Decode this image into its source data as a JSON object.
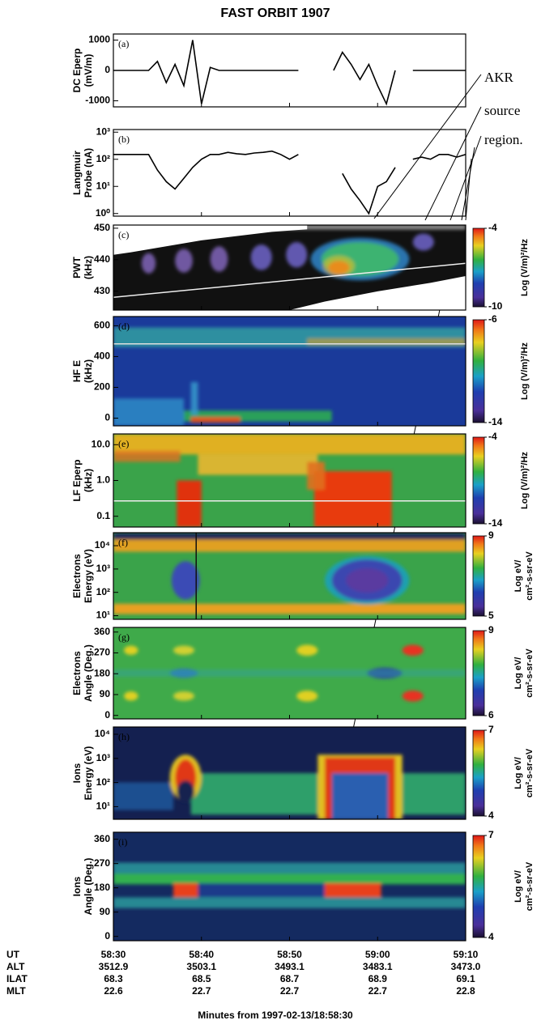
{
  "chart_data": {
    "type": "spectrogram",
    "title": "FAST ORBIT 1907",
    "x_label": "Minutes from 1997-02-13/18:58:30",
    "xlim": [
      0,
      40
    ],
    "xticks": [
      {
        "value": 0,
        "label": "58:30"
      },
      {
        "value": 10,
        "label": "58:40"
      },
      {
        "value": 20,
        "label": "58:50"
      },
      {
        "value": 30,
        "label": "59:00"
      },
      {
        "value": 40,
        "label": "59:10"
      }
    ],
    "row_labels": [
      "UT",
      "ALT",
      "ILAT",
      "MLT"
    ],
    "alt": [
      "3512.9",
      "3503.1",
      "3493.1",
      "3483.1",
      "3473.0"
    ],
    "ilat": [
      "68.3",
      "68.5",
      "68.7",
      "68.9",
      "69.1"
    ],
    "mlt": [
      "22.6",
      "22.7",
      "22.7",
      "22.7",
      "22.8"
    ],
    "annotation": [
      "AKR",
      "source",
      "region."
    ],
    "x": [
      0,
      1,
      2,
      3,
      4,
      5,
      6,
      7,
      8,
      9,
      10,
      11,
      12,
      13,
      14,
      15,
      16,
      17,
      18,
      19,
      20,
      21,
      22,
      23,
      24,
      25,
      26,
      27,
      28,
      29,
      30,
      31,
      32,
      33,
      34,
      35,
      36,
      37,
      38,
      39,
      40
    ],
    "panels": [
      {
        "type": "line",
        "letter": "(a)",
        "ylabel": [
          "DC Eperp",
          "(mV/m)"
        ],
        "color": "#000000",
        "ylim": [
          -1200,
          1200
        ],
        "yticks": [
          1000,
          0,
          -1000
        ],
        "values": [
          0,
          0,
          0,
          0,
          0,
          300,
          -400,
          200,
          -500,
          1000,
          -1100,
          100,
          0,
          0,
          0,
          0,
          0,
          0,
          0,
          0,
          0,
          0,
          null,
          null,
          null,
          0,
          600,
          200,
          -300,
          200,
          -500,
          -1100,
          0,
          null,
          0,
          0,
          0,
          0,
          0,
          0,
          0
        ]
      },
      {
        "type": "line",
        "letter": "(b)",
        "ylabel": [
          "Langmuir",
          "Probe (nA)"
        ],
        "color": "#000000",
        "log": true,
        "ylim": [
          0.8,
          1250
        ],
        "yticks": [
          {
            "value": 1000,
            "label": "10³"
          },
          {
            "value": 100,
            "label": "10²"
          },
          {
            "value": 10,
            "label": "10¹"
          },
          {
            "value": 1,
            "label": "10⁰"
          }
        ],
        "values": [
          150,
          150,
          150,
          150,
          150,
          40,
          15,
          8,
          20,
          50,
          100,
          150,
          150,
          180,
          160,
          150,
          170,
          180,
          200,
          150,
          100,
          150,
          null,
          null,
          null,
          null,
          30,
          8,
          3,
          1,
          10,
          15,
          50,
          null,
          100,
          120,
          100,
          150,
          150,
          120,
          150
        ]
      },
      {
        "type": "spectrogram",
        "letter": "(c)",
        "ylabel": [
          "PWT",
          "(kHz)"
        ],
        "ylim": [
          424,
          451
        ],
        "yticks": [
          450,
          440,
          430
        ],
        "clim": [
          -10,
          -4
        ],
        "cticks": [
          -4,
          -10
        ],
        "clabel": [
          "Log (V/m)²/Hz"
        ]
      },
      {
        "type": "spectrogram",
        "letter": "(d)",
        "ylabel": [
          "HF E",
          "(kHz)"
        ],
        "ylim": [
          -50,
          660
        ],
        "yticks": [
          600,
          400,
          200,
          0
        ],
        "clim": [
          -14,
          -6
        ],
        "cticks": [
          -6,
          -14
        ],
        "clabel": [
          "Log (V/m)²/Hz"
        ]
      },
      {
        "type": "spectrogram",
        "letter": "(e)",
        "ylabel": [
          "LF Eperp",
          "(kHz)"
        ],
        "log": true,
        "ylim": [
          0.05,
          20
        ],
        "yticks": [
          {
            "value": 10,
            "label": "10.0"
          },
          {
            "value": 1,
            "label": "1.0"
          },
          0.1
        ],
        "clim": [
          -14,
          -4
        ],
        "cticks": [
          -4,
          -14
        ],
        "clabel": [
          "Log (V/m)²/Hz"
        ]
      },
      {
        "type": "spectrogram",
        "letter": "(f)",
        "ylabel": [
          "Electrons",
          "Energy (eV)"
        ],
        "log": true,
        "ylim": [
          7,
          36000
        ],
        "yticks": [
          {
            "value": 10000,
            "label": "10⁴"
          },
          {
            "value": 1000,
            "label": "10³"
          },
          {
            "value": 100,
            "label": "10²"
          },
          {
            "value": 10,
            "label": "10¹"
          }
        ],
        "clim": [
          5,
          9
        ],
        "cticks": [
          9,
          5
        ],
        "clabel": [
          "Log eV/",
          "cm²-s-sr-eV"
        ]
      },
      {
        "type": "spectrogram",
        "letter": "(g)",
        "ylabel": [
          "Electrons",
          "Angle (Deg.)"
        ],
        "ylim": [
          -15,
          380
        ],
        "yticks": [
          360,
          270,
          180,
          90,
          0
        ],
        "clim": [
          6,
          9
        ],
        "cticks": [
          9,
          6
        ],
        "clabel": [
          "Log eV/",
          "cm²-s-sr-eV"
        ]
      },
      {
        "type": "spectrogram",
        "letter": "(h)",
        "ylabel": [
          "Ions",
          "Energy (eV)"
        ],
        "log": true,
        "ylim": [
          3,
          20000
        ],
        "yticks": [
          {
            "value": 10000,
            "label": "10⁴"
          },
          {
            "value": 1000,
            "label": "10³"
          },
          {
            "value": 100,
            "label": "10²"
          },
          {
            "value": 10,
            "label": "10¹"
          }
        ],
        "clim": [
          4,
          7
        ],
        "cticks": [
          7,
          4
        ],
        "clabel": [
          "Log eV/",
          "cm²-s-sr-eV"
        ]
      },
      {
        "type": "spectrogram",
        "letter": "(i)",
        "ylabel": [
          "Ions",
          "Angle (Deg.)"
        ],
        "ylim": [
          -16,
          386
        ],
        "yticks": [
          360,
          270,
          180,
          90,
          0
        ],
        "clim": [
          4,
          7
        ],
        "cticks": [
          7,
          4
        ],
        "clabel": [
          "Log eV/",
          "cm²-s-sr-eV"
        ]
      }
    ]
  }
}
